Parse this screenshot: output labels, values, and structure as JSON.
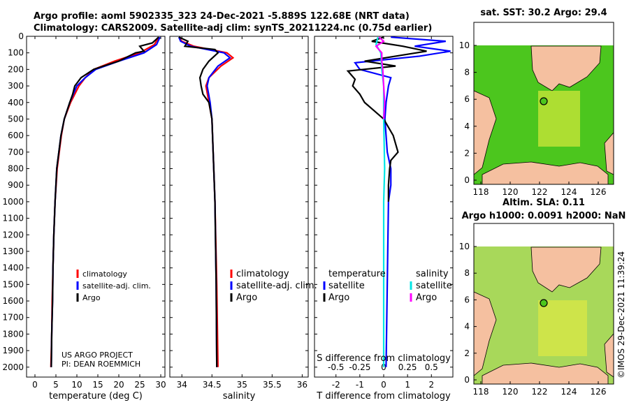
{
  "header": {
    "line1": "Argo profile: aoml 5902335_323 24-Dec-2021 -5.889S 122.68E (NRT data)",
    "line2": "Climatology: CARS2009. Satellite-adj clim: synTS_20211224.nc (0.75d earlier)"
  },
  "colors": {
    "climatology": "#ff0000",
    "satellite": "#0000ff",
    "argo": "#000000",
    "sat_salinity": "#00e5e5",
    "argo_salinity": "#ff00ff",
    "land": "#f5c0a0"
  },
  "chart_data": [
    {
      "type": "line",
      "name": "temperature-panel",
      "xlabel": "temperature (deg C)",
      "xlim": [
        -2,
        31
      ],
      "ylim": [
        2060,
        0
      ],
      "xticks": [
        "0",
        "5",
        "10",
        "15",
        "20",
        "25",
        "30"
      ],
      "yticks": [
        "0",
        "100",
        "200",
        "300",
        "400",
        "500",
        "600",
        "700",
        "800",
        "900",
        "1000",
        "1100",
        "1200",
        "1300",
        "1400",
        "1500",
        "1600",
        "1700",
        "1800",
        "1900",
        "2000"
      ],
      "legend": [
        "climatology",
        "satellite-adj. clim.",
        "Argo"
      ],
      "annotation": [
        "US ARGO PROJECT",
        "PI: DEAN ROEMMICH"
      ],
      "series": [
        {
          "name": "climatology",
          "depth": [
            5,
            50,
            100,
            150,
            200,
            250,
            300,
            400,
            500,
            600,
            800,
            1000,
            1200,
            1400,
            1600,
            1800,
            2000
          ],
          "values": [
            29.5,
            28.5,
            25,
            19,
            14,
            12,
            10.5,
            8.5,
            7,
            6.3,
            5.3,
            4.8,
            4.5,
            4.3,
            4.1,
            4,
            3.8
          ]
        },
        {
          "name": "satellite-adj. clim.",
          "depth": [
            5,
            50,
            100,
            150,
            200,
            250,
            300,
            400,
            500,
            600,
            800,
            1000,
            1200,
            1400,
            1600,
            1800,
            2000
          ],
          "values": [
            29.8,
            29,
            26,
            20,
            14.5,
            12,
            10,
            8.3,
            7,
            6.2,
            5.2,
            4.8,
            4.5,
            4.3,
            4.2,
            4,
            3.9
          ]
        },
        {
          "name": "Argo",
          "depth": [
            5,
            40,
            60,
            90,
            100,
            150,
            170,
            200,
            250,
            300,
            350,
            400,
            500,
            600,
            800,
            1000,
            1200,
            1400,
            1600,
            1800,
            2000
          ],
          "values": [
            29.5,
            28,
            25,
            26,
            24,
            20,
            17.5,
            14,
            11,
            9.5,
            9,
            8.3,
            7,
            6.2,
            5.2,
            4.8,
            4.5,
            4.3,
            4.2,
            4,
            3.9
          ]
        }
      ]
    },
    {
      "type": "line",
      "name": "salinity-panel",
      "xlabel": "salinity",
      "xlim": [
        33.8,
        36.1
      ],
      "ylim": [
        2060,
        0
      ],
      "xticks": [
        "34",
        "34.5",
        "35",
        "35.5",
        "36"
      ],
      "legend": [
        "climatology",
        "satellite-adj. clim.",
        "Argo"
      ],
      "series": [
        {
          "name": "climatology",
          "depth": [
            5,
            30,
            60,
            100,
            130,
            180,
            250,
            300,
            400,
            500,
            700,
            1000,
            1500,
            2000
          ],
          "values": [
            33.95,
            34.0,
            34.2,
            34.75,
            34.85,
            34.65,
            34.45,
            34.4,
            34.45,
            34.5,
            34.52,
            34.55,
            34.58,
            34.6
          ]
        },
        {
          "name": "satellite-adj. clim.",
          "depth": [
            5,
            30,
            60,
            100,
            130,
            180,
            250,
            300,
            400,
            500,
            700,
            1000,
            1500,
            2000
          ],
          "values": [
            33.95,
            33.98,
            34.15,
            34.7,
            34.8,
            34.6,
            34.45,
            34.42,
            34.47,
            34.5,
            34.52,
            34.55,
            34.57,
            34.58
          ]
        },
        {
          "name": "Argo",
          "depth": [
            5,
            30,
            60,
            80,
            100,
            150,
            200,
            250,
            300,
            350,
            400,
            500,
            700,
            1000,
            1500,
            2000
          ],
          "values": [
            33.95,
            34.1,
            34.05,
            34.55,
            34.6,
            34.45,
            34.35,
            34.3,
            34.32,
            34.35,
            34.45,
            34.5,
            34.52,
            34.55,
            34.57,
            34.58
          ]
        }
      ]
    },
    {
      "type": "line",
      "name": "difference-panel",
      "xlabel": "T difference from climatology",
      "xlabel2": "S difference from climatology",
      "xlim": [
        -2.9,
        2.9
      ],
      "ylim": [
        2060,
        0
      ],
      "xticks": [
        "-2",
        "-1",
        "0",
        "1",
        "2"
      ],
      "xticks2": [
        "-0.5",
        "-0.25",
        "0",
        "0.25",
        "0.5"
      ],
      "legend_headers": [
        "temperature",
        "salinity"
      ],
      "legend_left": [
        "satellite",
        "Argo"
      ],
      "legend_right": [
        "satellite",
        "Argo"
      ],
      "series": [
        {
          "name": "T satellite",
          "depth": [
            5,
            30,
            60,
            90,
            120,
            160,
            200,
            250,
            300,
            400,
            500,
            600,
            700,
            800,
            900,
            1000,
            1500,
            2000
          ],
          "values": [
            0.3,
            2.6,
            1.3,
            2.8,
            1.5,
            -1.2,
            -1.0,
            0.3,
            0.2,
            0.1,
            0.05,
            0.1,
            0.15,
            0.3,
            0.3,
            0.2,
            0.15,
            0.1
          ]
        },
        {
          "name": "T Argo",
          "depth": [
            5,
            30,
            60,
            90,
            120,
            150,
            180,
            210,
            260,
            300,
            350,
            400,
            450,
            500,
            600,
            700,
            750,
            800,
            900,
            1000
          ],
          "values": [
            0,
            -0.5,
            0.8,
            1.8,
            0.5,
            -0.8,
            0.5,
            -1.5,
            -1.2,
            -1.3,
            -1.0,
            -0.8,
            -0.4,
            0,
            0.4,
            0.6,
            0.3,
            0.25,
            0.2,
            0.2
          ]
        },
        {
          "name": "S satellite",
          "depth": [
            5,
            50,
            100,
            200,
            300,
            500,
            800,
            1000,
            1500,
            2000
          ],
          "values": [
            -0.06,
            -0.08,
            -0.03,
            -0.02,
            0.0,
            0.0,
            0.01,
            0.0,
            0.0,
            0.0
          ]
        },
        {
          "name": "S Argo",
          "depth": [
            5,
            30,
            60,
            100,
            150,
            200,
            300,
            400,
            500
          ],
          "values": [
            -0.05,
            0.0,
            -0.08,
            -0.02,
            -0.02,
            -0.01,
            0.0,
            0.01,
            0.0
          ]
        }
      ]
    },
    {
      "type": "heatmap",
      "name": "sst-map",
      "title": "sat. SST: 30.2 Argo: 29.4",
      "xticks": [
        "118",
        "120",
        "122",
        "124",
        "126"
      ],
      "yticks": [
        "0",
        "2",
        "4",
        "6",
        "8",
        "10"
      ]
    },
    {
      "type": "heatmap",
      "name": "sla-map",
      "title": "Altim. SLA: 0.11",
      "subtitle": "Argo h1000: 0.0091 h2000: NaN",
      "xticks": [
        "118",
        "120",
        "122",
        "124",
        "126"
      ],
      "yticks": [
        "0",
        "2",
        "4",
        "6",
        "8",
        "10"
      ]
    }
  ],
  "credit": "©IMOS 29-Dec-2021 11:39:24"
}
